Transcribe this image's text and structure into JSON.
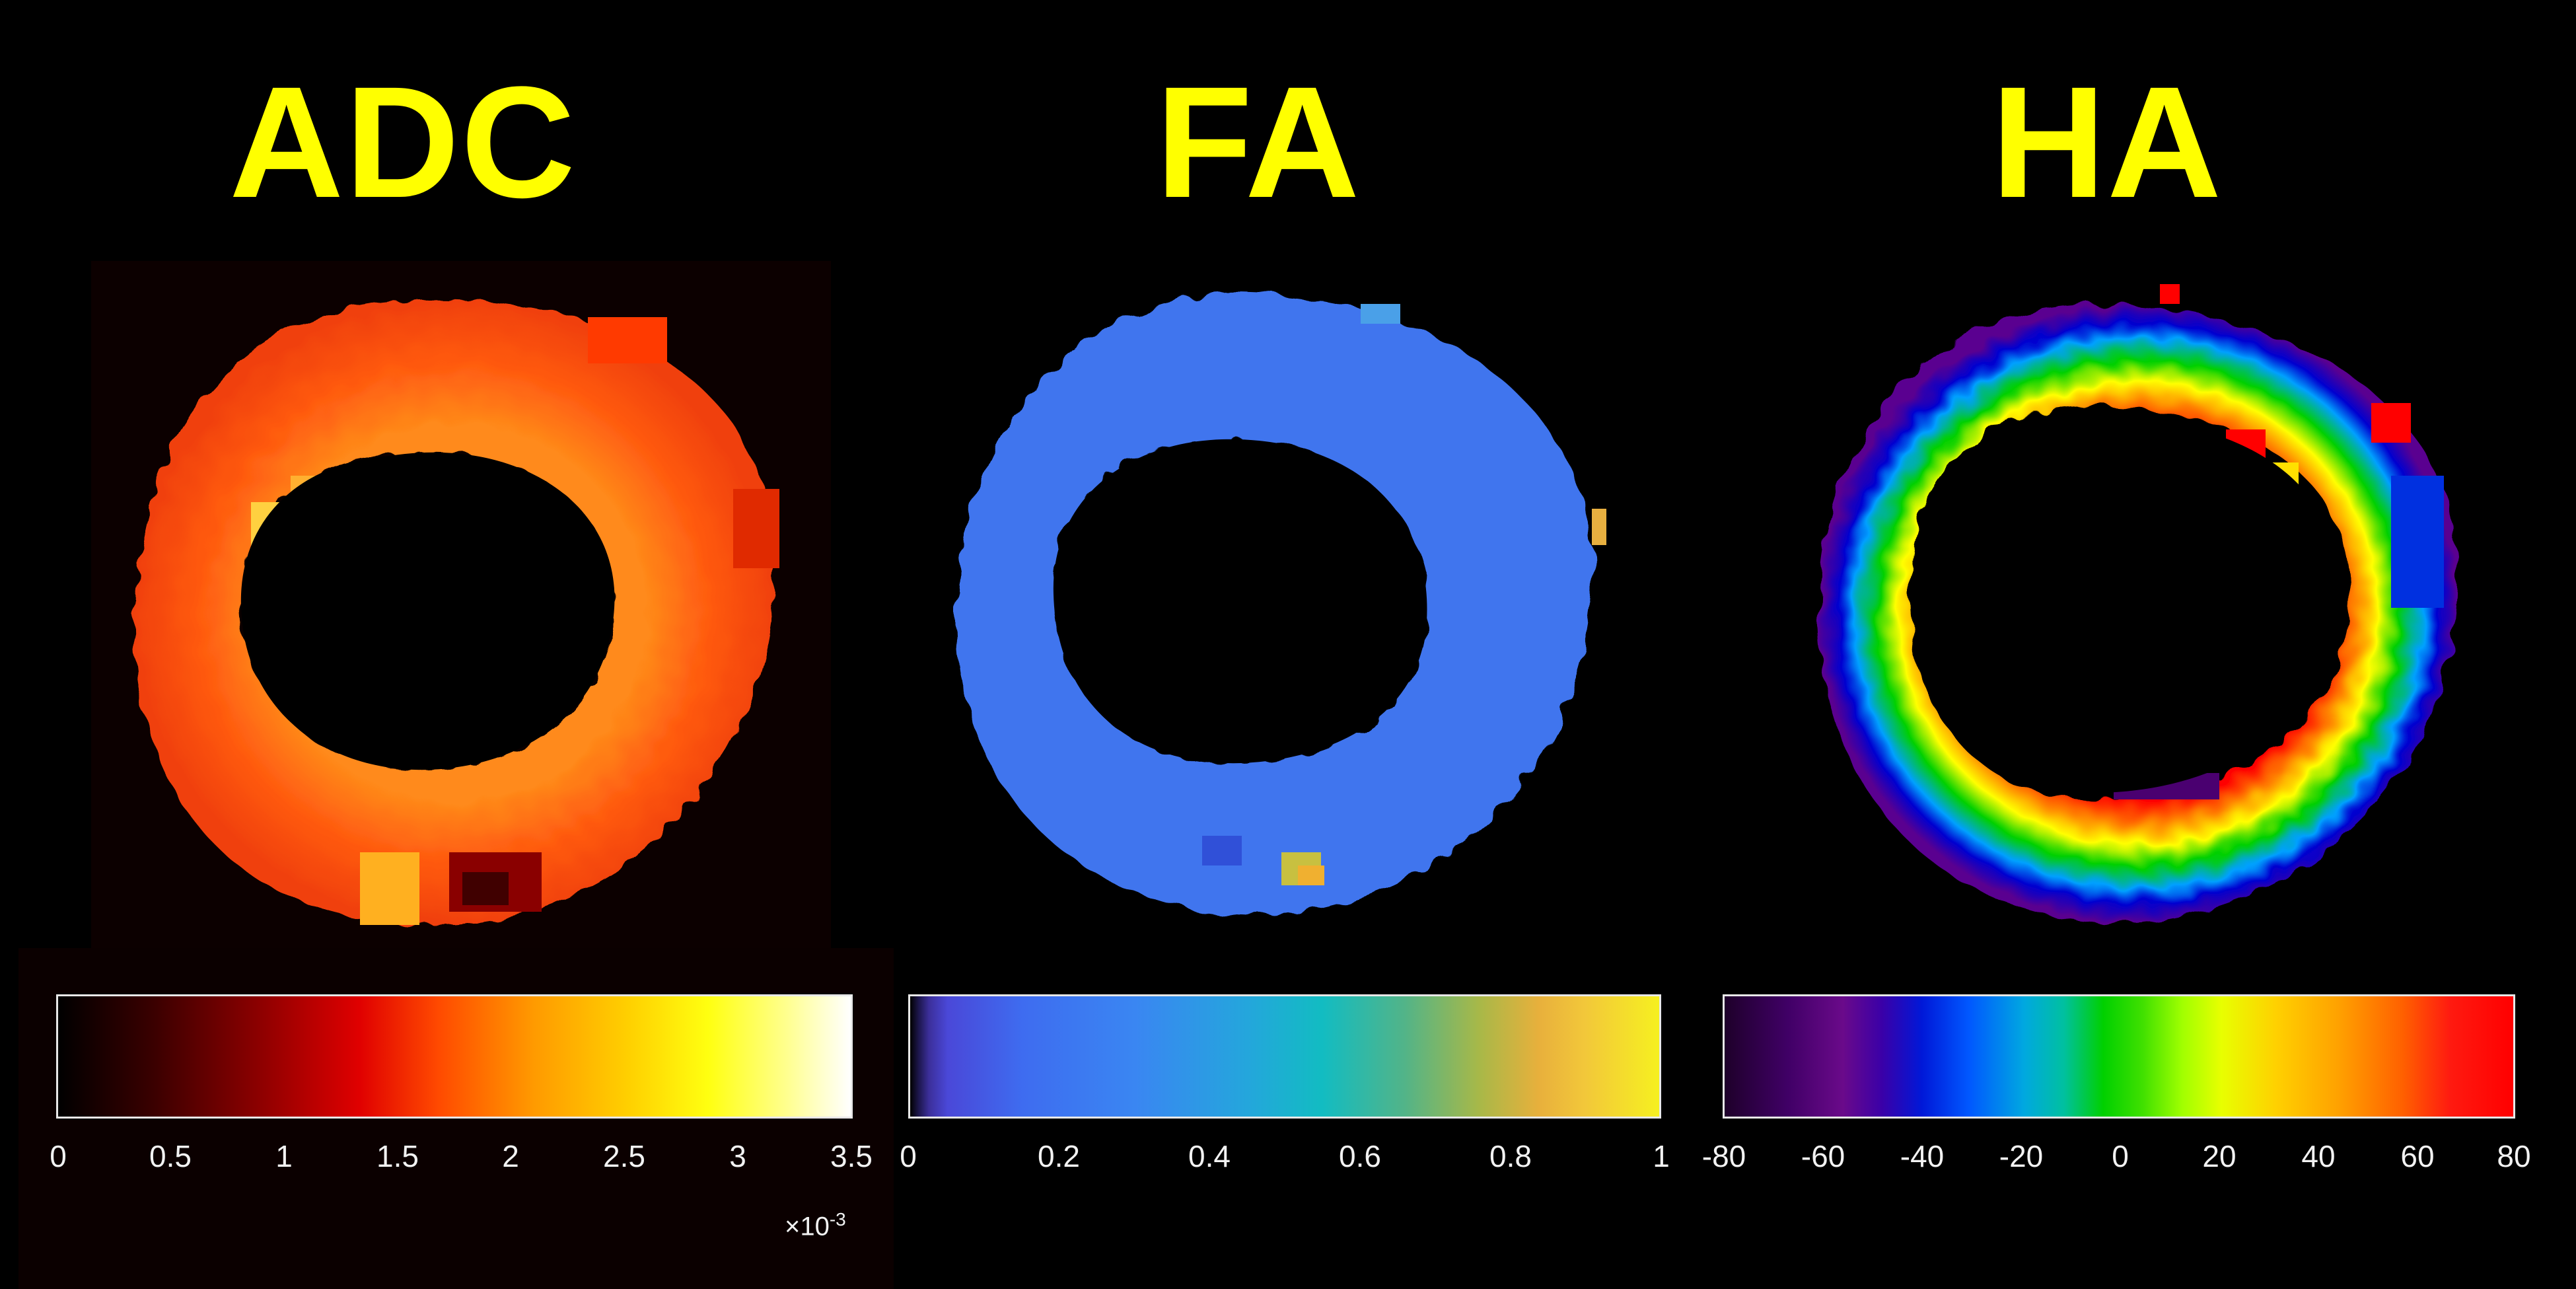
{
  "panels": [
    {
      "title": "ADC",
      "colorbar_ticks": [
        "0",
        "0.5",
        "1",
        "1.5",
        "2",
        "2.5",
        "3",
        "3.5"
      ],
      "colorbar_multiplier_base": "×10",
      "colorbar_multiplier_exp": "-3",
      "colormap": "hot"
    },
    {
      "title": "FA",
      "colorbar_ticks": [
        "0",
        "0.2",
        "0.4",
        "0.6",
        "0.8",
        "1"
      ],
      "colormap": "parula"
    },
    {
      "title": "HA",
      "colorbar_ticks": [
        "-80",
        "-60",
        "-40",
        "-20",
        "0",
        "20",
        "40",
        "60",
        "80"
      ],
      "colormap": "jet"
    }
  ],
  "colors": {
    "title": "#ffff00",
    "background": "#000000",
    "tick_text": "#f2f2f2"
  }
}
